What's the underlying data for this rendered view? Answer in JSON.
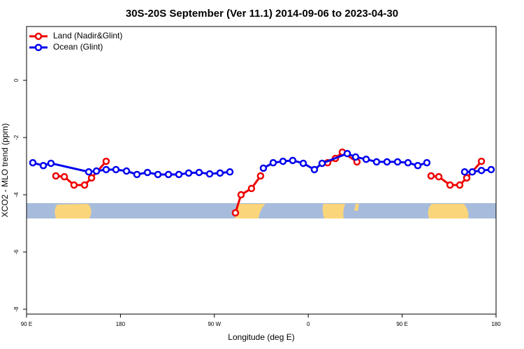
{
  "chart_data": {
    "type": "line",
    "title": "30S-20S September (Ver 11.1)   2014-09-06 to 2023-04-30",
    "xlabel": "Longitude (deg E)",
    "ylabel": "XCO2 - MLO trend (ppm)",
    "xlim": [
      90,
      540
    ],
    "ylim": [
      -8.17,
      1.88
    ],
    "xticks": [
      {
        "value": 90,
        "label": "90 E"
      },
      180,
      {
        "value": 270,
        "label": "90 W"
      },
      {
        "value": 360,
        "label": "0"
      },
      {
        "value": 450,
        "label": "90 E"
      },
      {
        "value": 540,
        "label": "180"
      }
    ],
    "yticks": [
      0,
      -2,
      -4,
      -6,
      -8
    ],
    "legend": "top-left",
    "series": [
      {
        "name": "Land (Nadir&Glint)",
        "color": "#ee0000",
        "x": [
          118.1,
          126.2,
          135.5,
          145.6,
          152.3,
          166.3,
          null,
          290.2,
          295.6,
          305.6,
          314.3,
          null,
          378.6,
          386.0,
          392.7,
          406.7,
          null,
          477.7,
          485.1,
          495.9,
          505.2,
          511.9,
          526.0
        ],
        "values": [
          -3.34,
          -3.37,
          -3.66,
          -3.66,
          -3.41,
          -2.83,
          null,
          -4.63,
          -4.0,
          -3.78,
          -3.34,
          null,
          -2.88,
          -2.73,
          -2.51,
          -2.85,
          null,
          -3.34,
          -3.37,
          -3.66,
          -3.66,
          -3.41,
          -2.83
        ]
      },
      {
        "name": "Ocean (Glint)",
        "color": "#0000ee",
        "x": [
          96.0,
          106.1,
          113.4,
          149.6,
          157.0,
          166.3,
          175.7,
          185.8,
          195.8,
          205.9,
          215.9,
          226.0,
          236.0,
          245.4,
          255.4,
          265.5,
          275.5,
          284.9,
          null,
          317.0,
          326.4,
          335.8,
          345.1,
          355.2,
          365.9,
          373.3,
          397.4,
          405.4,
          415.5,
          425.5,
          435.5,
          445.6,
          455.6,
          465.0,
          473.7,
          null,
          509.9,
          517.2,
          526.0,
          535.3
        ],
        "values": [
          -2.88,
          -2.98,
          -2.9,
          -3.2,
          -3.17,
          -3.12,
          -3.12,
          -3.17,
          -3.29,
          -3.22,
          -3.29,
          -3.29,
          -3.29,
          -3.24,
          -3.22,
          -3.27,
          -3.24,
          -3.2,
          null,
          -3.07,
          -2.88,
          -2.83,
          -2.8,
          -2.9,
          -3.12,
          -2.9,
          -2.56,
          -2.68,
          -2.76,
          -2.85,
          -2.85,
          -2.85,
          -2.88,
          -2.98,
          -2.88,
          null,
          -3.2,
          -3.2,
          -3.15,
          -3.12
        ]
      }
    ]
  }
}
